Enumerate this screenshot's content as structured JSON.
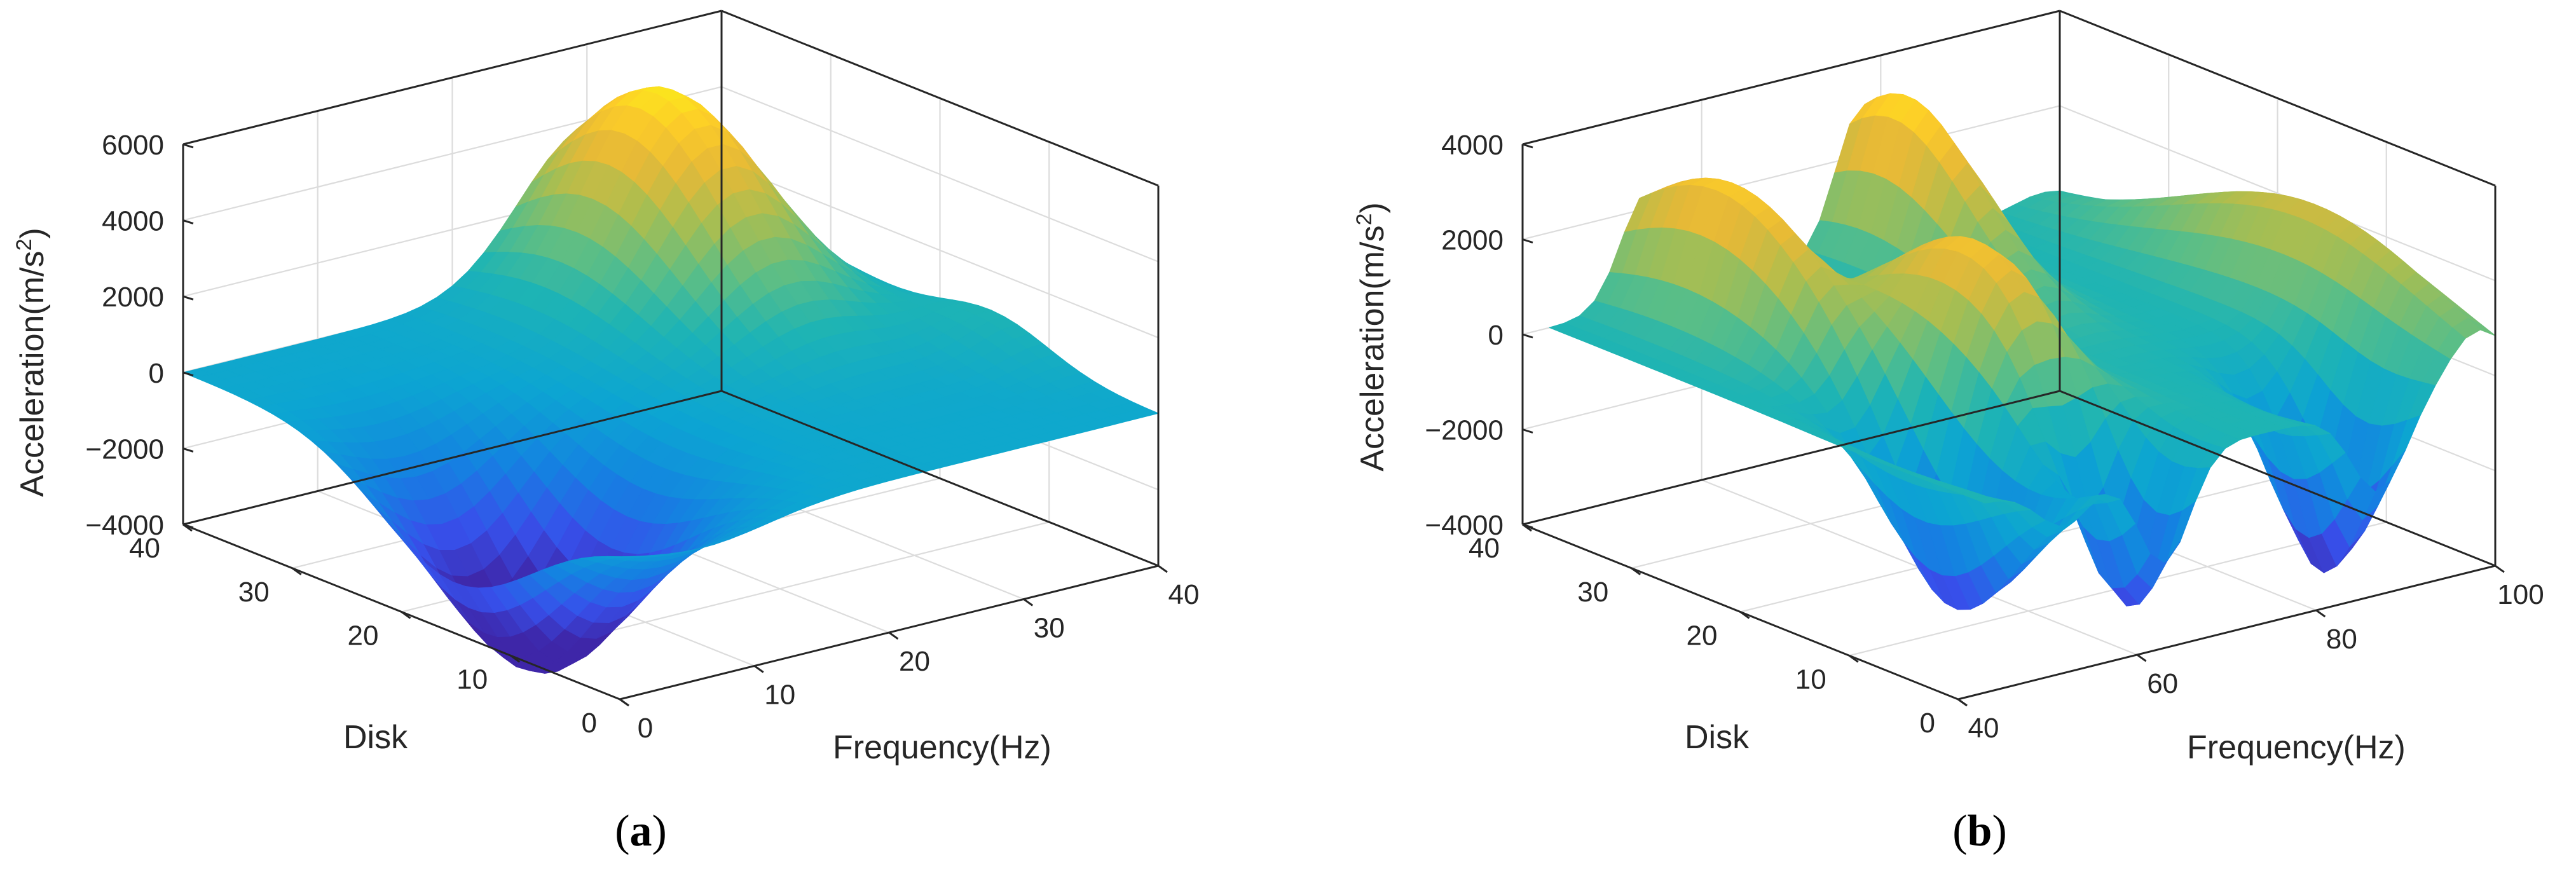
{
  "chart_data": [
    {
      "type": "surface",
      "panel_label": "a",
      "xlabel": "Frequency(Hz)",
      "ylabel": "Disk",
      "zlabel_prefix": "Acceleration(m/s",
      "zlabel_sup": "2",
      "zlabel_suffix": ")",
      "xlim": [
        0,
        40
      ],
      "ylim": [
        0,
        40
      ],
      "zlim": [
        -4000,
        6000
      ],
      "xticks": [
        0,
        10,
        20,
        30,
        40
      ],
      "yticks": [
        0,
        10,
        20,
        30,
        40
      ],
      "zticks": [
        -4000,
        -2000,
        0,
        2000,
        4000,
        6000
      ],
      "xtick_labels": [
        "0",
        "10",
        "20",
        "30",
        "40"
      ],
      "ytick_labels": [
        "0",
        "10",
        "20",
        "30",
        "40"
      ],
      "ztick_labels": [
        "−4000",
        "−2000",
        "0",
        "2000",
        "4000",
        "6000"
      ],
      "grid": true,
      "colormap": "parula",
      "surface_range": {
        "x": [
          0,
          40
        ],
        "y": [
          0,
          40
        ]
      },
      "surface_features": [
        {
          "kind": "peak",
          "x": 30,
          "y": 33,
          "value": 5600,
          "spread_x": 5,
          "spread_y": 8
        },
        {
          "kind": "trough",
          "x": 6,
          "y": 15,
          "value": -5500,
          "spread_x": 5,
          "spread_y": 7
        },
        {
          "kind": "bump",
          "x": 40,
          "y": 15,
          "value": 900,
          "spread_x": 3,
          "spread_y": 5
        }
      ]
    },
    {
      "type": "surface",
      "panel_label": "b",
      "xlabel": "Frequency(Hz)",
      "ylabel": "Disk",
      "zlabel_prefix": "Acceleration(m/s",
      "zlabel_sup": "2",
      "zlabel_suffix": ")",
      "xlim": [
        40,
        100
      ],
      "ylim": [
        0,
        40
      ],
      "zlim": [
        -4000,
        4000
      ],
      "xticks": [
        40,
        60,
        80,
        100
      ],
      "yticks": [
        0,
        10,
        20,
        30,
        40
      ],
      "zticks": [
        -4000,
        -2000,
        0,
        2000,
        4000
      ],
      "xtick_labels": [
        "40",
        "60",
        "80",
        "100"
      ],
      "ytick_labels": [
        "0",
        "10",
        "20",
        "30",
        "40"
      ],
      "ztick_labels": [
        "−4000",
        "−2000",
        "0",
        "2000",
        "4000"
      ],
      "grid": true,
      "colormap": "parula",
      "surface_range": {
        "x": [
          43,
          100
        ],
        "y": [
          0,
          40
        ]
      },
      "surface_features": [
        {
          "kind": "ridge",
          "x": 54,
          "y": 33,
          "value": 3200,
          "spread_x": 3,
          "spread_y": 9
        },
        {
          "kind": "ridge",
          "x": 63,
          "y": 17,
          "value": 3000,
          "spread_x": 4,
          "spread_y": 8
        },
        {
          "kind": "ridge",
          "x": 78,
          "y": 36,
          "value": 3600,
          "spread_x": 3,
          "spread_y": 7
        },
        {
          "kind": "ridge",
          "x": 98,
          "y": 15,
          "value": 2300,
          "spread_x": 3,
          "spread_y": 12
        },
        {
          "kind": "trough",
          "x": 52,
          "y": 10,
          "value": -3700,
          "spread_x": 3,
          "spread_y": 6
        },
        {
          "kind": "trough",
          "x": 63,
          "y": 4,
          "value": -4200,
          "spread_x": 3,
          "spread_y": 4
        },
        {
          "kind": "trough",
          "x": 87,
          "y": 5,
          "value": -4000,
          "spread_x": 3,
          "spread_y": 4
        }
      ]
    }
  ],
  "captions": [
    {
      "open": "(",
      "letter": "a",
      "close": ")"
    },
    {
      "open": "(",
      "letter": "b",
      "close": ")"
    }
  ]
}
